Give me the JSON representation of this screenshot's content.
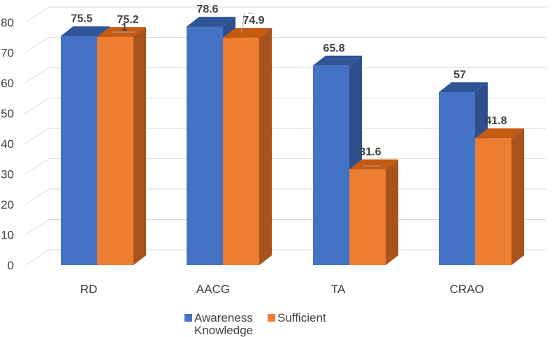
{
  "chart_data": {
    "type": "bar",
    "categories": [
      "RD",
      "AACG",
      "TA",
      "CRAO"
    ],
    "series": [
      {
        "name": "Awareness Knowledge",
        "values": [
          75.5,
          78.6,
          65.8,
          57
        ],
        "labels": [
          "75.5",
          "78.6",
          "65.8",
          "57"
        ],
        "color": "#4472C4",
        "top_color": "#2F5597",
        "side_color": "#2E4F8E"
      },
      {
        "name": "Sufficient",
        "values": [
          75.2,
          74.9,
          31.6,
          41.8
        ],
        "labels": [
          "75.2",
          "74.9",
          "31.6",
          "41.8"
        ],
        "color": "#ED7D31",
        "top_color": "#C55A11",
        "side_color": "#A9531C"
      }
    ],
    "stray_label": "1",
    "yticks": [
      0,
      10,
      20,
      30,
      40,
      50,
      60,
      70,
      80
    ],
    "ylim": [
      0,
      80
    ],
    "grid": true,
    "legend": "bottom",
    "legend_lines": [
      [
        "Awareness",
        "Knowledge"
      ],
      [
        "Sufficient"
      ]
    ]
  }
}
